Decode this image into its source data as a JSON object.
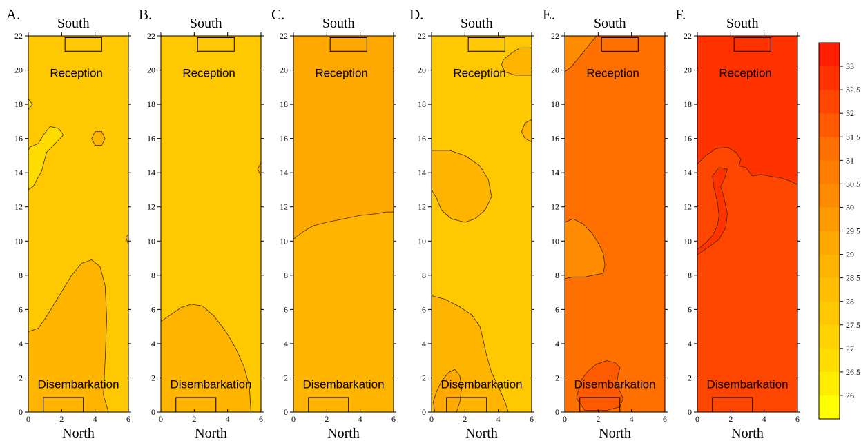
{
  "figure": {
    "unit_label": "",
    "panels": [
      {
        "letter": "A.",
        "top_label": "South",
        "bottom_label": "North",
        "reception_label": "Reception",
        "disembarkation_label": "Disembarkation",
        "base_color": "#ffc800",
        "zones": [
          {
            "color": "#ffb400",
            "path": [
              [
                0,
                4.7
              ],
              [
                0.6,
                4.9
              ],
              [
                1.1,
                5.6
              ],
              [
                1.6,
                6.4
              ],
              [
                2.1,
                7.2
              ],
              [
                2.6,
                8.0
              ],
              [
                3.2,
                8.7
              ],
              [
                3.8,
                8.9
              ],
              [
                4.3,
                8.5
              ],
              [
                4.6,
                7.4
              ],
              [
                4.7,
                5.5
              ],
              [
                4.6,
                3.0
              ],
              [
                4.5,
                1.0
              ],
              [
                4.8,
                0
              ],
              [
                0,
                0
              ]
            ]
          },
          {
            "color": "#ffdc00",
            "path": [
              [
                0,
                13.0
              ],
              [
                0.3,
                13.2
              ],
              [
                0.8,
                14.1
              ],
              [
                1.1,
                15.2
              ],
              [
                1.6,
                15.7
              ],
              [
                2.1,
                16.2
              ],
              [
                1.8,
                16.6
              ],
              [
                1.3,
                16.7
              ],
              [
                0.9,
                16.2
              ],
              [
                0.6,
                15.7
              ],
              [
                0.1,
                15.5
              ],
              [
                0,
                15.3
              ]
            ]
          },
          {
            "color": "#ffb400",
            "path": [
              [
                3.8,
                16.0
              ],
              [
                4.0,
                15.6
              ],
              [
                4.4,
                15.6
              ],
              [
                4.6,
                16.0
              ],
              [
                4.4,
                16.4
              ],
              [
                4.0,
                16.4
              ]
            ]
          },
          {
            "color": "#ffdc00",
            "path": [
              [
                0,
                18.3
              ],
              [
                0.25,
                18.0
              ],
              [
                0,
                17.7
              ]
            ]
          },
          {
            "color": "#ffb400",
            "path": [
              [
                6,
                10.4
              ],
              [
                5.85,
                10.2
              ],
              [
                6,
                9.8
              ]
            ]
          }
        ]
      },
      {
        "letter": "B.",
        "top_label": "South",
        "bottom_label": "North",
        "reception_label": "Reception",
        "disembarkation_label": "Disembarkation",
        "base_color": "#ffc800",
        "zones": [
          {
            "color": "#ffb400",
            "path": [
              [
                0,
                5.3
              ],
              [
                0.6,
                5.7
              ],
              [
                1.2,
                6.1
              ],
              [
                1.8,
                6.3
              ],
              [
                2.5,
                6.2
              ],
              [
                3.2,
                5.6
              ],
              [
                3.9,
                4.7
              ],
              [
                4.5,
                3.7
              ],
              [
                5.0,
                2.6
              ],
              [
                5.3,
                1.5
              ],
              [
                5.4,
                0
              ],
              [
                0,
                0
              ]
            ]
          },
          {
            "color": "#ffb400",
            "path": [
              [
                6,
                14.6
              ],
              [
                5.8,
                14.2
              ],
              [
                6,
                13.8
              ]
            ]
          }
        ]
      },
      {
        "letter": "C.",
        "top_label": "South",
        "bottom_label": "North",
        "reception_label": "Reception",
        "disembarkation_label": "Disembarkation",
        "base_color": "#ffb400",
        "zones": [
          {
            "color": "#ffa800",
            "path": [
              [
                0,
                10.1
              ],
              [
                0.5,
                10.5
              ],
              [
                1.2,
                10.9
              ],
              [
                2.0,
                11.1
              ],
              [
                3.0,
                11.3
              ],
              [
                4.0,
                11.5
              ],
              [
                5.0,
                11.6
              ],
              [
                5.5,
                11.7
              ],
              [
                6,
                11.7
              ],
              [
                6,
                22
              ],
              [
                0,
                22
              ]
            ]
          }
        ]
      },
      {
        "letter": "D.",
        "top_label": "South",
        "bottom_label": "North",
        "reception_label": "Reception",
        "disembarkation_label": "Disembarkation",
        "base_color": "#ffc800",
        "zones": [
          {
            "color": "#ffb400",
            "path": [
              [
                0,
                15.3
              ],
              [
                1.1,
                15.3
              ],
              [
                2.0,
                15.0
              ],
              [
                2.9,
                14.4
              ],
              [
                3.4,
                13.6
              ],
              [
                3.6,
                12.6
              ],
              [
                3.2,
                11.8
              ],
              [
                2.6,
                11.3
              ],
              [
                2.0,
                11.1
              ],
              [
                1.2,
                11.3
              ],
              [
                0.6,
                11.8
              ],
              [
                0.3,
                12.5
              ],
              [
                0,
                13.0
              ]
            ]
          },
          {
            "color": "#ffb400",
            "path": [
              [
                0,
                6.8
              ],
              [
                0.8,
                6.6
              ],
              [
                1.6,
                6.2
              ],
              [
                2.4,
                5.7
              ],
              [
                2.9,
                5.0
              ],
              [
                3.1,
                4.2
              ],
              [
                3.3,
                3.3
              ],
              [
                3.6,
                2.3
              ],
              [
                4.0,
                1.5
              ],
              [
                4.4,
                0.6
              ],
              [
                4.6,
                0
              ],
              [
                0,
                0
              ]
            ]
          },
          {
            "color": "#ffa800",
            "path": [
              [
                0.1,
                0.6
              ],
              [
                0.3,
                1.2
              ],
              [
                0.6,
                1.8
              ],
              [
                1.0,
                2.3
              ],
              [
                1.4,
                2.5
              ],
              [
                1.7,
                2.1
              ],
              [
                1.8,
                1.4
              ],
              [
                1.7,
                0.6
              ],
              [
                1.5,
                0
              ],
              [
                0.2,
                0
              ]
            ]
          },
          {
            "color": "#ffb400",
            "path": [
              [
                6,
                21.3
              ],
              [
                5.3,
                21.3
              ],
              [
                4.8,
                21.0
              ],
              [
                4.3,
                20.6
              ],
              [
                4.2,
                20.3
              ],
              [
                4.4,
                19.9
              ],
              [
                5.0,
                19.7
              ],
              [
                6,
                19.7
              ]
            ]
          },
          {
            "color": "#ffb400",
            "path": [
              [
                6,
                17.1
              ],
              [
                5.6,
                16.9
              ],
              [
                5.4,
                16.4
              ],
              [
                5.6,
                16.0
              ],
              [
                6,
                15.8
              ]
            ]
          }
        ]
      },
      {
        "letter": "E.",
        "top_label": "South",
        "bottom_label": "North",
        "reception_label": "Reception",
        "disembarkation_label": "Disembarkation",
        "base_color": "#ff7000",
        "zones": [
          {
            "color": "#ff8c00",
            "path": [
              [
                0,
                19.9
              ],
              [
                0.4,
                20.2
              ],
              [
                0.9,
                20.8
              ],
              [
                1.4,
                21.4
              ],
              [
                1.9,
                22
              ],
              [
                0,
                22
              ]
            ]
          },
          {
            "color": "#ff8c00",
            "path": [
              [
                0,
                11.1
              ],
              [
                0.5,
                11.3
              ],
              [
                1.1,
                11.0
              ],
              [
                1.6,
                10.5
              ],
              [
                2.0,
                9.9
              ],
              [
                2.3,
                9.3
              ],
              [
                2.4,
                8.6
              ],
              [
                2.3,
                8.1
              ],
              [
                1.7,
                8.0
              ],
              [
                1.2,
                7.9
              ],
              [
                0.5,
                7.9
              ],
              [
                0,
                7.8
              ]
            ]
          },
          {
            "color": "#ff5a00",
            "path": [
              [
                0.7,
                0.8
              ],
              [
                0.8,
                1.2
              ],
              [
                1.0,
                1.9
              ],
              [
                1.4,
                2.4
              ],
              [
                1.9,
                2.8
              ],
              [
                2.5,
                3.0
              ],
              [
                3.0,
                2.9
              ],
              [
                3.3,
                2.6
              ],
              [
                3.2,
                2.2
              ],
              [
                3.1,
                1.6
              ],
              [
                3.3,
                1.2
              ],
              [
                3.5,
                0.8
              ],
              [
                3.3,
                0.3
              ],
              [
                2.5,
                0.1
              ],
              [
                1.2,
                0.1
              ]
            ]
          }
        ]
      },
      {
        "letter": "F.",
        "top_label": "South",
        "bottom_label": "North",
        "reception_label": "Reception",
        "disembarkation_label": "Disembarkation",
        "base_color": "#ff4600",
        "zones": [
          {
            "color": "#ff3200",
            "path": [
              [
                0,
                14.5
              ],
              [
                0.5,
                15.0
              ],
              [
                1.1,
                15.4
              ],
              [
                1.8,
                15.5
              ],
              [
                2.3,
                15.2
              ],
              [
                2.6,
                14.8
              ],
              [
                2.5,
                14.4
              ],
              [
                2.9,
                14.3
              ],
              [
                3.3,
                13.8
              ],
              [
                3.8,
                13.9
              ],
              [
                4.3,
                13.8
              ],
              [
                5.0,
                13.7
              ],
              [
                5.6,
                13.5
              ],
              [
                6,
                13.3
              ],
              [
                6,
                22
              ],
              [
                0,
                22
              ]
            ]
          },
          {
            "color": "#ff3200",
            "path": [
              [
                0,
                9.5
              ],
              [
                0.5,
                9.9
              ],
              [
                0.9,
                10.3
              ],
              [
                1.2,
                10.9
              ],
              [
                1.3,
                11.5
              ],
              [
                1.2,
                12.3
              ],
              [
                1.0,
                13.1
              ],
              [
                0.9,
                13.8
              ],
              [
                1.3,
                14.3
              ],
              [
                1.8,
                14.2
              ],
              [
                1.6,
                13.6
              ],
              [
                1.4,
                13.2
              ],
              [
                1.6,
                12.5
              ],
              [
                1.8,
                11.6
              ],
              [
                1.7,
                10.8
              ],
              [
                1.3,
                10.1
              ],
              [
                0.6,
                9.6
              ],
              [
                0,
                9.2
              ]
            ]
          }
        ]
      }
    ]
  },
  "chart_data": {
    "type": "heatmap",
    "panels": [
      "A.",
      "B.",
      "C.",
      "D.",
      "E.",
      "F."
    ],
    "x_axis": {
      "label": "North",
      "ticks": [
        0,
        2,
        4,
        6
      ],
      "range": [
        0,
        6
      ]
    },
    "y_axis": {
      "label": "",
      "ticks": [
        0,
        2,
        4,
        6,
        8,
        10,
        12,
        14,
        16,
        18,
        20,
        22
      ],
      "range": [
        0,
        22
      ]
    },
    "colorbar": {
      "levels": [
        26,
        26.5,
        27,
        27.5,
        28,
        28.5,
        29,
        29.5,
        30,
        30.5,
        31,
        31.5,
        32,
        32.5,
        33
      ],
      "colors": [
        "#ffff00",
        "#ffec00",
        "#ffdc00",
        "#ffd200",
        "#ffc800",
        "#ffbe00",
        "#ffb400",
        "#ffa800",
        "#ff9a00",
        "#ff8c00",
        "#ff7e00",
        "#ff7000",
        "#ff5a00",
        "#ff4600",
        "#ff3200",
        "#ff1e00"
      ]
    },
    "annotations": [
      "Reception",
      "Disembarkation",
      "South",
      "North"
    ]
  }
}
